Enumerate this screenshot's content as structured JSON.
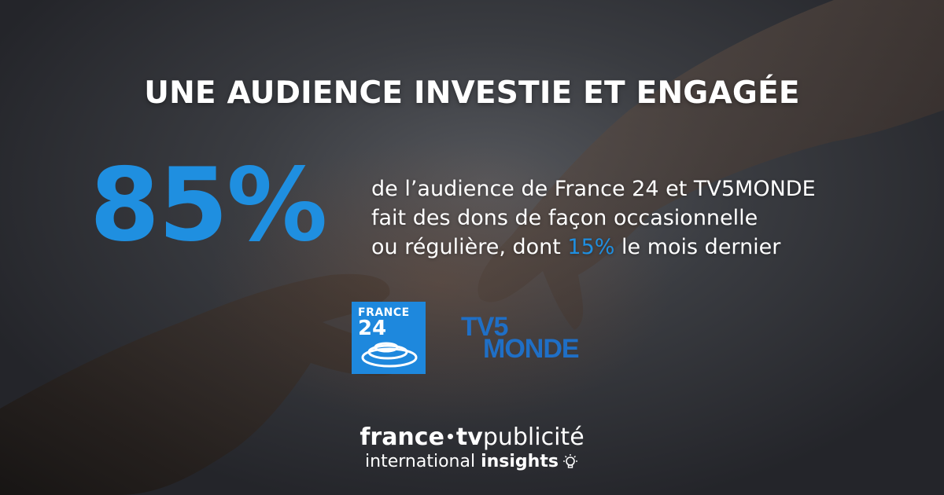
{
  "headline": "UNE AUDIENCE INVESTIE ET ENGAGÉE",
  "stat": {
    "value": "85%",
    "line1": "de l’audience de France 24 et TV5MONDE",
    "line2": "fait des dons de façon occasionnelle",
    "line3_before": "ou régulière, dont ",
    "line3_highlight": "15%",
    "line3_after": " le mois dernier"
  },
  "logos": {
    "france24_word": "FRANCE",
    "france24_number": "24",
    "tv5_top": "TV5",
    "tv5_bottom": "MONDE"
  },
  "brand": {
    "part1": "france",
    "part2": "tv",
    "part3": "publicité",
    "tagline_regular": "international ",
    "tagline_bold": "insights",
    "icon": "lightbulb-icon"
  },
  "colors": {
    "accent_blue": "#1f8fe0",
    "france24_blue": "#1e88dd",
    "tv5_blue": "#1f6fc6",
    "text": "#ffffff",
    "background": "#2c2d31"
  }
}
